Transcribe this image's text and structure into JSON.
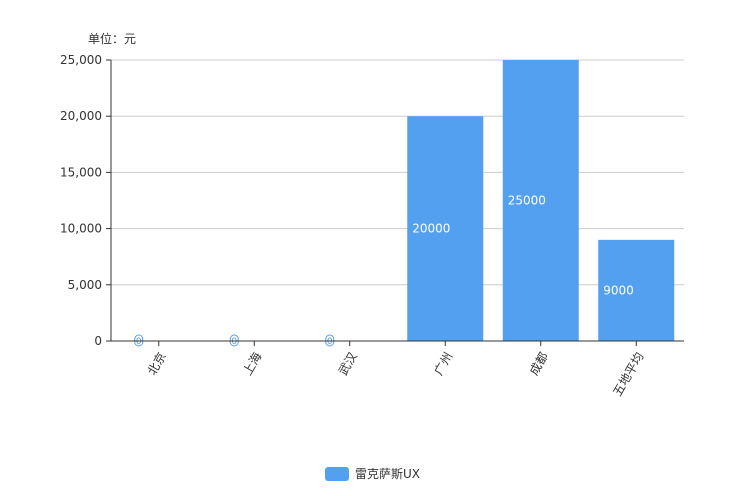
{
  "chart_data": {
    "type": "bar",
    "unit_label": "单位：元",
    "categories": [
      "北京",
      "上海",
      "武汉",
      "广州",
      "成都",
      "五地平均"
    ],
    "series": [
      {
        "name": "雷克萨斯UX",
        "values": [
          0,
          0,
          0,
          20000,
          25000,
          9000
        ],
        "color": "#539ff0"
      }
    ],
    "data_labels": [
      "0",
      "0",
      "0",
      "20000",
      "25000",
      "9000"
    ],
    "ylim": [
      0,
      25000
    ],
    "yticks": [
      0,
      5000,
      10000,
      15000,
      20000,
      25000
    ],
    "ytick_labels": [
      "0",
      "5,000",
      "10,000",
      "15,000",
      "20,000",
      "25,000"
    ],
    "grid": true,
    "legend_position": "bottom-center",
    "xlabel_rotation": "rotated"
  }
}
